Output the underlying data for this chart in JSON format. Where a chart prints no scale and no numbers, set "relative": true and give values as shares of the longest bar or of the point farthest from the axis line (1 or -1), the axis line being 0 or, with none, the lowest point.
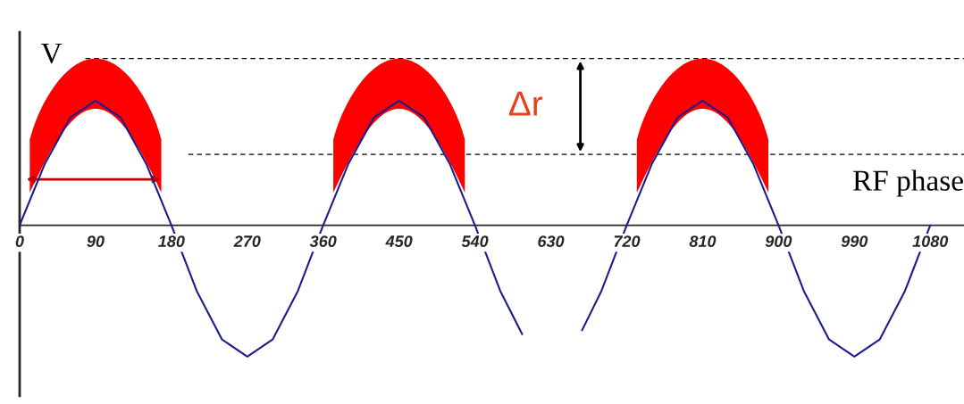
{
  "chart_data": {
    "type": "line",
    "relative": true,
    "x": [
      0,
      30,
      60,
      90,
      120,
      150,
      180,
      210,
      240,
      270,
      300,
      330,
      360,
      390,
      420,
      450,
      480,
      510,
      540,
      570,
      596,
      630,
      667,
      690,
      720,
      750,
      780,
      810,
      840,
      870,
      900,
      930,
      960,
      990,
      1020,
      1050,
      1080
    ],
    "series": [
      {
        "color": "#1c1c8c",
        "values": [
          0,
          0.47,
          0.82,
          0.95,
          0.82,
          0.47,
          0,
          -0.5,
          -0.87,
          -1,
          -0.87,
          -0.5,
          0,
          0.47,
          0.82,
          0.95,
          0.82,
          0.47,
          0,
          -0.5,
          -0.83,
          null,
          -0.8,
          -0.5,
          0,
          0.47,
          0.82,
          0.95,
          0.82,
          0.47,
          0,
          -0.5,
          -0.87,
          -1,
          -0.87,
          -0.5,
          0
        ]
      }
    ],
    "xticks": [
      0,
      90,
      180,
      270,
      360,
      450,
      540,
      630,
      720,
      810,
      900,
      990,
      1080
    ],
    "xlim": [
      0,
      1120
    ],
    "tick_labels": "x",
    "grid": false,
    "marker": "none",
    "line_style": "solid",
    "ref_lines": [
      {
        "axis": "y",
        "value": 1.27,
        "color": "#000000",
        "line_style": "dashed"
      },
      {
        "axis": "y",
        "value": 0.54,
        "color": "#000000",
        "line_style": "dashed"
      }
    ],
    "annotations": [
      "V",
      "Δr",
      "RF phase"
    ]
  }
}
